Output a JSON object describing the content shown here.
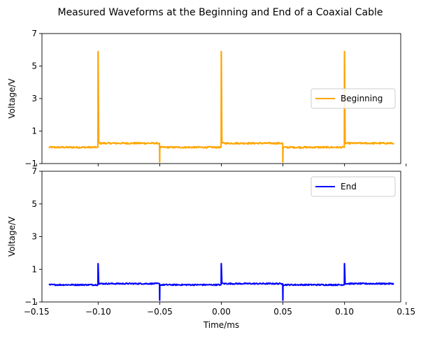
{
  "figure_title": "Measured Waveforms at the Beginning and End of a Coaxial Cable",
  "chart_data": [
    {
      "type": "line",
      "title": "",
      "xlabel": "",
      "ylabel": "Voltage/V",
      "xlim": [
        -0.1456,
        0.1456
      ],
      "ylim": [
        -1,
        7
      ],
      "yticks": [
        -1,
        1,
        3,
        5,
        7
      ],
      "xticks": [
        -0.15,
        -0.1,
        -0.05,
        0.0,
        0.05,
        0.1,
        0.15
      ],
      "show_xticklabels": false,
      "grid": false,
      "legend": "center-right",
      "series": [
        {
          "name": "Beginning",
          "color": "#FFA500",
          "x": [
            -0.14,
            -0.1002,
            -0.1001,
            -0.1,
            -0.0995,
            -0.099,
            -0.0505,
            -0.0502,
            -0.0501,
            -0.05,
            -0.0499,
            -0.0495,
            -0.0005,
            -0.0002,
            -0.0001,
            0.0,
            0.0005,
            0.001,
            0.0495,
            0.0498,
            0.0499,
            0.05,
            0.0501,
            0.0505,
            0.0995,
            0.0998,
            0.0999,
            0.1,
            0.1005,
            0.101,
            0.14
          ],
          "y": [
            0.0,
            0.0,
            5.9,
            5.9,
            0.3,
            0.25,
            0.25,
            0.25,
            -0.9,
            -0.9,
            -0.05,
            0.0,
            0.0,
            0.0,
            5.9,
            5.9,
            0.3,
            0.25,
            0.25,
            0.25,
            -0.9,
            -0.9,
            -0.05,
            0.0,
            0.0,
            0.0,
            5.9,
            5.9,
            0.3,
            0.25,
            0.25
          ],
          "noise_amplitude": 0.05
        }
      ]
    },
    {
      "type": "line",
      "title": "",
      "xlabel": "Time/ms",
      "ylabel": "Voltage/V",
      "xlim": [
        -0.1456,
        0.1456
      ],
      "ylim": [
        -1,
        7
      ],
      "yticks": [
        -1,
        1,
        3,
        5,
        7
      ],
      "xticks": [
        -0.15,
        -0.1,
        -0.05,
        0.0,
        0.05,
        0.1,
        0.15
      ],
      "xticklabels": [
        "−0.15",
        "−0.10",
        "−0.05",
        "0.00",
        "0.05",
        "0.10",
        "0.15"
      ],
      "show_xticklabels": true,
      "grid": false,
      "legend": "top-right",
      "series": [
        {
          "name": "End",
          "color": "#0000FF",
          "x": [
            -0.14,
            -0.1002,
            -0.1001,
            -0.1,
            -0.0995,
            -0.099,
            -0.0505,
            -0.0502,
            -0.0501,
            -0.05,
            -0.0499,
            -0.0495,
            -0.0005,
            -0.0002,
            -0.0001,
            0.0,
            0.0005,
            0.001,
            0.0495,
            0.0498,
            0.0499,
            0.05,
            0.0501,
            0.0505,
            0.0995,
            0.0998,
            0.0999,
            0.1,
            0.1005,
            0.101,
            0.14
          ],
          "y": [
            0.05,
            0.05,
            1.35,
            1.35,
            0.15,
            0.12,
            0.12,
            0.12,
            -0.9,
            -0.9,
            0.05,
            0.05,
            0.05,
            0.05,
            1.35,
            1.35,
            0.15,
            0.12,
            0.12,
            0.12,
            -0.9,
            -0.9,
            0.05,
            0.05,
            0.05,
            0.05,
            1.35,
            1.35,
            0.15,
            0.12,
            0.12
          ],
          "noise_amplitude": 0.04
        }
      ]
    }
  ]
}
